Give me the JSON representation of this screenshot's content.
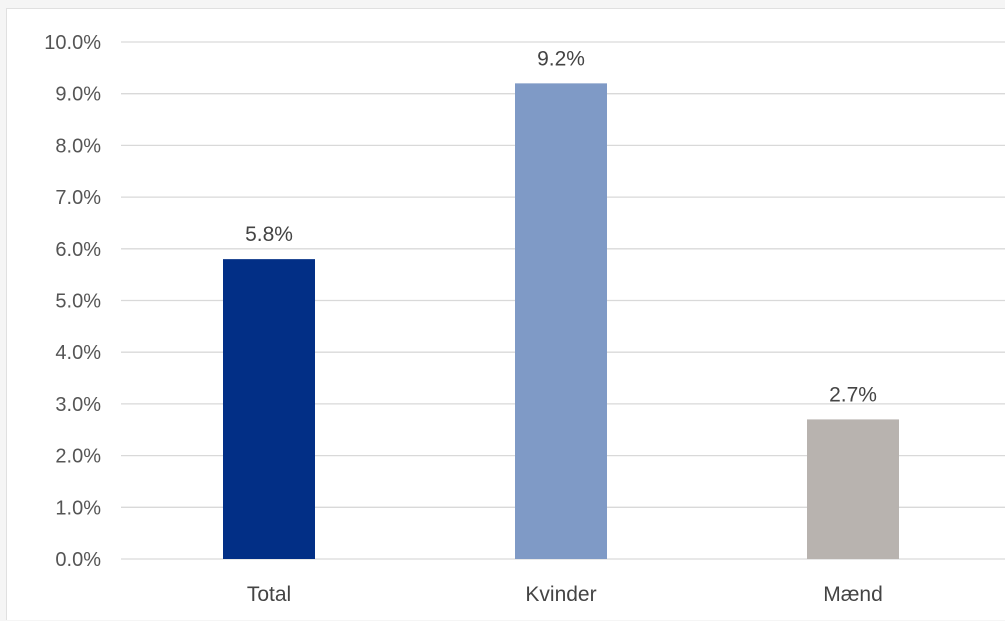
{
  "chart_data": {
    "type": "bar",
    "categories": [
      "Total",
      "Kvinder",
      "Mænd"
    ],
    "values": [
      5.8,
      9.2,
      2.7
    ],
    "data_labels": [
      "5.8%",
      "9.2%",
      "2.7%"
    ],
    "bar_colors": [
      "#022f86",
      "#7f9ac6",
      "#b8b3af"
    ],
    "y_ticks": [
      "0.0%",
      "1.0%",
      "2.0%",
      "3.0%",
      "4.0%",
      "5.0%",
      "6.0%",
      "7.0%",
      "8.0%",
      "9.0%",
      "10.0%"
    ],
    "ylim": [
      0,
      10
    ],
    "grid": true,
    "legend": "none"
  }
}
